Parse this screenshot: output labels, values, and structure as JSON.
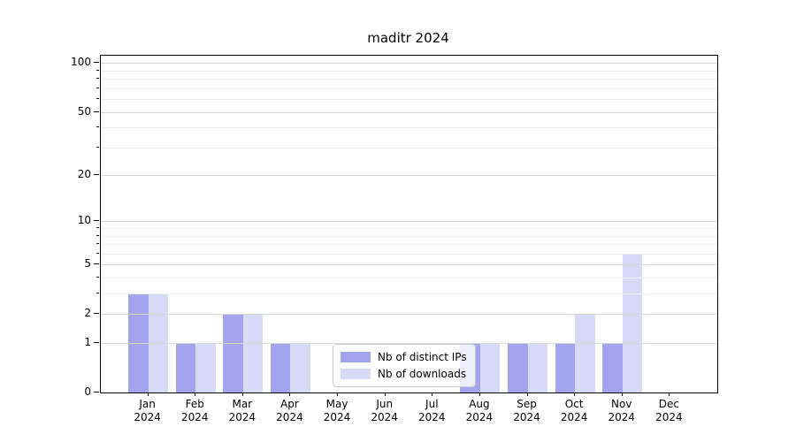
{
  "title": "maditr 2024",
  "chart_data": {
    "type": "bar",
    "title": "maditr 2024",
    "categories": [
      "Jan 2024",
      "Feb 2024",
      "Mar 2024",
      "Apr 2024",
      "May 2024",
      "Jun 2024",
      "Jul 2024",
      "Aug 2024",
      "Sep 2024",
      "Oct 2024",
      "Nov 2024",
      "Dec 2024"
    ],
    "x_months": [
      "Jan",
      "Feb",
      "Mar",
      "Apr",
      "May",
      "Jun",
      "Jul",
      "Aug",
      "Sep",
      "Oct",
      "Nov",
      "Dec"
    ],
    "x_year": "2024",
    "series": [
      {
        "name": "Nb of distinct IPs",
        "color": "#a3a3ee",
        "values": [
          3,
          1,
          2,
          1,
          0,
          0,
          0,
          1,
          1,
          1,
          1,
          0
        ]
      },
      {
        "name": "Nb of downloads",
        "color": "#d8d8f7",
        "values": [
          3,
          1,
          2,
          1,
          0,
          0,
          0,
          1,
          1,
          2,
          6,
          0
        ]
      }
    ],
    "xlabel": "",
    "ylabel": "",
    "yscale": "log1p",
    "ylim": [
      0,
      111
    ],
    "yticks": [
      0,
      1,
      2,
      5,
      10,
      20,
      50,
      100
    ],
    "y_minor_ticks": [
      3,
      4,
      6,
      7,
      8,
      9,
      30,
      40,
      60,
      70,
      80,
      90
    ],
    "grid": "horizontal, drawn above bars",
    "legend_position": "lower center inside plot",
    "colors": {
      "background": "#ffffff",
      "axis": "#000000",
      "major_grid": "#d7d7d7",
      "minor_grid": "#ededed",
      "legend_border": "#cccccc"
    }
  }
}
